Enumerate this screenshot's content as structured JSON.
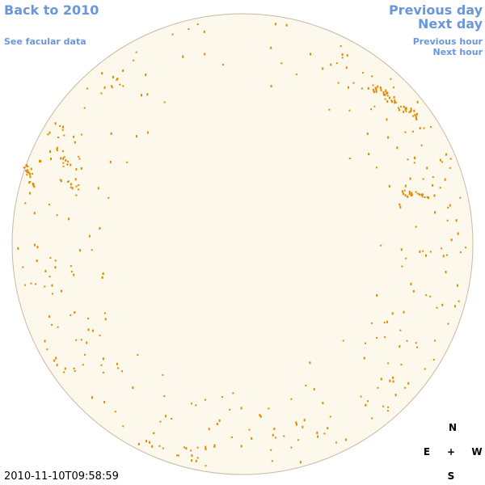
{
  "nav": {
    "back": "Back to 2010",
    "previous_day": "Previous day",
    "next_day": "Next day",
    "facular": "See facular data",
    "previous_hour": "Previous hour",
    "next_hour": "Next hour"
  },
  "timestamp": "2010-11-10T09:58:59",
  "compass": {
    "north": "N",
    "east": "E",
    "center": "+",
    "west": "W",
    "south": "S"
  }
}
